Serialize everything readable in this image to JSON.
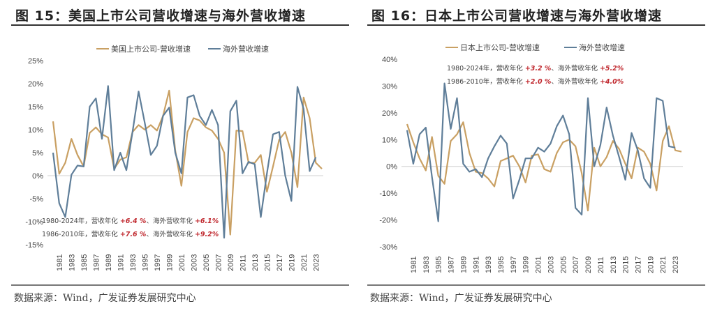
{
  "charts": [
    {
      "figure_title": "图 15：美国上市公司营收增速与海外营收增速",
      "source": "数据来源：Wind，广发证券发展研究中心",
      "annotations": [
        {
          "prefix": "1980-2024年，营收年化 ",
          "v1": "+6.4 %",
          "mid": "、海外营收年化 ",
          "v2": "+6.1%"
        },
        {
          "prefix": "1986-2010年，营收年化 ",
          "v1": "+7.6 %",
          "mid": "、海外营收年化 ",
          "v2": "+9.2%"
        }
      ]
    },
    {
      "figure_title": "图 16：日本上市公司营收增速与海外营收增速",
      "source": "数据来源：Wind，广发证券发展研究中心",
      "annotations": [
        {
          "prefix": "1980-2024年，营收年化 ",
          "v1": "+3.2 %",
          "mid": "、海外营收年化 ",
          "v2": "+5.2%"
        },
        {
          "prefix": "1986-2010年，营收年化 ",
          "v1": "+2.0 %",
          "mid": "、海外营收年化 ",
          "v2": "+4.0%"
        }
      ]
    }
  ],
  "colors": {
    "revenue": "#c9a063",
    "overseas": "#5f7e99",
    "zero_line": "#d0d0d0",
    "highlight": "#c0282e"
  },
  "chart_data": [
    {
      "type": "line",
      "title": "美国上市公司营收增速与海外营收增速",
      "xlabel": "",
      "ylabel": "",
      "x": [
        1980,
        1981,
        1982,
        1983,
        1984,
        1985,
        1986,
        1987,
        1988,
        1989,
        1990,
        1991,
        1992,
        1993,
        1994,
        1995,
        1996,
        1997,
        1998,
        1999,
        2000,
        2001,
        2002,
        2003,
        2004,
        2005,
        2006,
        2007,
        2008,
        2009,
        2010,
        2011,
        2012,
        2013,
        2014,
        2015,
        2016,
        2017,
        2018,
        2019,
        2020,
        2021,
        2022,
        2023,
        2024
      ],
      "x_tick_labels": [
        "1981",
        "1983",
        "1985",
        "1987",
        "1989",
        "1991",
        "1993",
        "1995",
        "1997",
        "1999",
        "2001",
        "2003",
        "2005",
        "2007",
        "2009",
        "2011",
        "2013",
        "2015",
        "2017",
        "2019",
        "2021",
        "2023"
      ],
      "y_tick_labels": [
        "25%",
        "20%",
        "15%",
        "10%",
        "5%",
        "0%",
        "-5%",
        "-10%",
        "-15%"
      ],
      "ylim": [
        -15,
        25
      ],
      "legend": [
        "美国上市公司-营收增速",
        "海外营收增速"
      ],
      "legend_position": "top-center",
      "series": [
        {
          "name": "美国上市公司-营收增速",
          "values": [
            11.8,
            0.4,
            2.8,
            8.0,
            4.5,
            2.0,
            9.3,
            10.5,
            9.0,
            8.3,
            1.5,
            3.5,
            4.0,
            9.5,
            11.0,
            10.0,
            11.0,
            9.8,
            13.0,
            18.5,
            5.5,
            -2.2,
            9.5,
            12.5,
            12.0,
            10.5,
            9.8,
            8.0,
            5.0,
            -12.8,
            9.8,
            9.7,
            2.8,
            2.8,
            4.5,
            -3.5,
            2.0,
            7.8,
            9.5,
            5.0,
            -2.5,
            17.0,
            12.5,
            2.8,
            1.5
          ]
        },
        {
          "name": "海外营收增速",
          "values": [
            5.0,
            -6.0,
            -9.0,
            0.2,
            2.2,
            2.0,
            15.0,
            16.8,
            8.0,
            19.5,
            1.2,
            5.0,
            1.2,
            9.5,
            18.3,
            11.5,
            4.5,
            6.5,
            13.0,
            14.8,
            5.0,
            0.5,
            17.0,
            17.5,
            13.0,
            11.0,
            14.3,
            11.0,
            -13.5,
            14.0,
            16.3,
            0.5,
            3.0,
            2.5,
            -9.0,
            0.5,
            9.0,
            9.5,
            0.0,
            -5.5,
            19.3,
            14.5,
            1.0,
            4.0,
            null
          ]
        }
      ]
    },
    {
      "type": "line",
      "title": "日本上市公司营收增速与海外营收增速",
      "xlabel": "",
      "ylabel": "",
      "x": [
        1980,
        1981,
        1982,
        1983,
        1984,
        1985,
        1986,
        1987,
        1988,
        1989,
        1990,
        1991,
        1992,
        1993,
        1994,
        1995,
        1996,
        1997,
        1998,
        1999,
        2000,
        2001,
        2002,
        2003,
        2004,
        2005,
        2006,
        2007,
        2008,
        2009,
        2010,
        2011,
        2012,
        2013,
        2014,
        2015,
        2016,
        2017,
        2018,
        2019,
        2020,
        2021,
        2022,
        2023,
        2024
      ],
      "x_tick_labels": [
        "1981",
        "1983",
        "1985",
        "1987",
        "1989",
        "1991",
        "1993",
        "1995",
        "1997",
        "1999",
        "2001",
        "2003",
        "2005",
        "2007",
        "2009",
        "2011",
        "2013",
        "2015",
        "2017",
        "2019",
        "2021",
        "2023"
      ],
      "y_tick_labels": [
        "40%",
        "30%",
        "20%",
        "10%",
        "0%",
        "-10%",
        "-20%",
        "-30%"
      ],
      "ylim": [
        -30,
        40
      ],
      "legend": [
        "日本上市公司-营收增速",
        "海外营收增速"
      ],
      "legend_position": "top-center",
      "series": [
        {
          "name": "日本上市公司-营收增速",
          "values": [
            15.8,
            9.0,
            3.0,
            -1.5,
            11.0,
            -3.5,
            -6.5,
            9.5,
            12.0,
            16.5,
            5.0,
            -2.0,
            -2.5,
            -4.5,
            -7.5,
            2.0,
            3.0,
            4.0,
            0.0,
            -6.0,
            4.0,
            4.5,
            -1.0,
            -2.0,
            5.0,
            9.0,
            10.0,
            7.5,
            -2.5,
            -16.5,
            7.0,
            0.0,
            3.5,
            9.5,
            6.5,
            1.0,
            -4.5,
            7.0,
            5.5,
            1.0,
            -9.0,
            9.5,
            15.0,
            6.0,
            5.5
          ]
        },
        {
          "name": "海外营收增速",
          "values": [
            13.5,
            1.0,
            12.0,
            14.5,
            -4.0,
            -20.5,
            31.0,
            14.0,
            25.5,
            1.0,
            -2.0,
            -1.0,
            -4.0,
            3.0,
            7.5,
            11.5,
            8.5,
            -12.0,
            -5.0,
            3.0,
            3.0,
            7.0,
            5.5,
            8.5,
            15.0,
            19.0,
            12.0,
            -15.5,
            -18.0,
            25.5,
            0.0,
            8.0,
            22.0,
            11.5,
            3.5,
            -5.0,
            12.5,
            6.0,
            -4.5,
            -8.0,
            25.5,
            24.5,
            7.5,
            7.0,
            null
          ]
        }
      ]
    }
  ]
}
